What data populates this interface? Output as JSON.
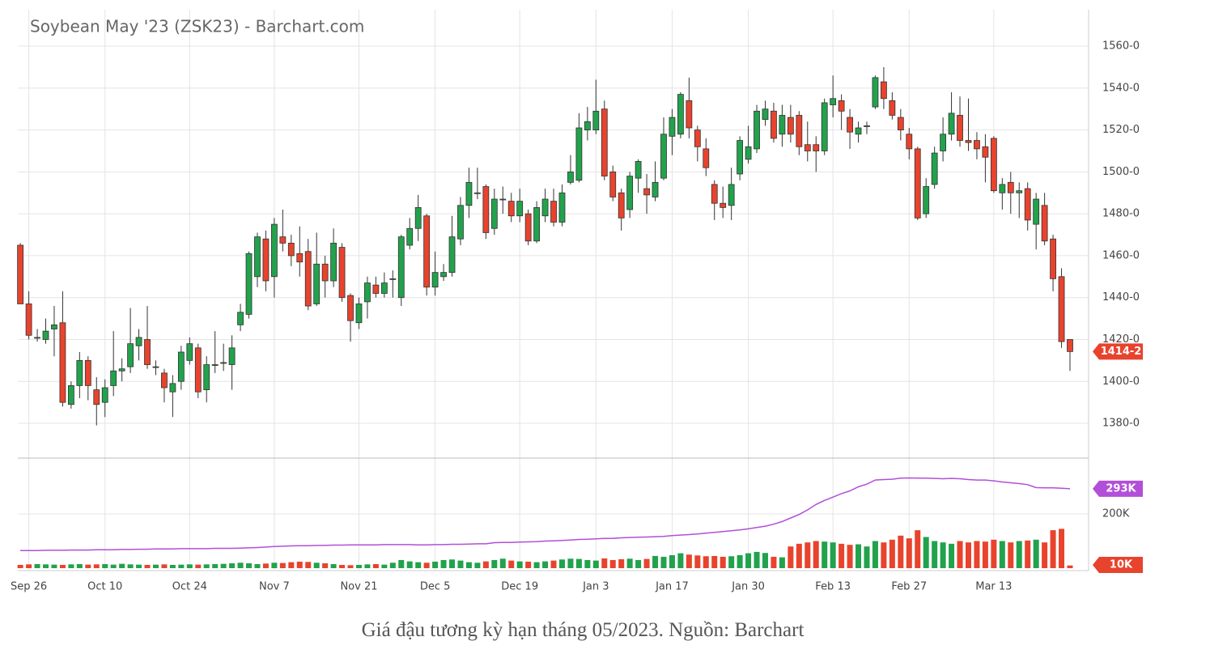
{
  "chart_data": {
    "type": "candlestick",
    "title": "Soybean May '23 (ZSK23) - Barchart.com",
    "up_color": "#22a24c",
    "down_color": "#e8432d",
    "grid": true,
    "xlim": [
      -0.3,
      126.2
    ],
    "xticks": [
      {
        "value": 1,
        "label": "Sep 26"
      },
      {
        "value": 10,
        "label": "Oct 10"
      },
      {
        "value": 20,
        "label": "Oct 24"
      },
      {
        "value": 30,
        "label": "Nov 7"
      },
      {
        "value": 40,
        "label": "Nov 21"
      },
      {
        "value": 49,
        "label": "Dec 5"
      },
      {
        "value": 59,
        "label": "Dec 19"
      },
      {
        "value": 68,
        "label": "Jan 3"
      },
      {
        "value": 77,
        "label": "Jan 17"
      },
      {
        "value": 86,
        "label": "Jan 30"
      },
      {
        "value": 96,
        "label": "Feb 13"
      },
      {
        "value": 105,
        "label": "Feb 27"
      },
      {
        "value": 115,
        "label": "Mar 13"
      }
    ],
    "ylim": [
      1363.4,
      1577.4
    ],
    "yticks": [
      {
        "value": 1380,
        "label": "1380-0"
      },
      {
        "value": 1400,
        "label": "1400-0"
      },
      {
        "value": 1420,
        "label": "1420-0"
      },
      {
        "value": 1440,
        "label": "1440-0"
      },
      {
        "value": 1460,
        "label": "1460-0"
      },
      {
        "value": 1480,
        "label": "1480-0"
      },
      {
        "value": 1500,
        "label": "1500-0"
      },
      {
        "value": 1520,
        "label": "1520-0"
      },
      {
        "value": 1540,
        "label": "1540-0"
      },
      {
        "value": 1560,
        "label": "1560-0"
      }
    ],
    "last_price": {
      "value": 1414.25,
      "label": "1414-2"
    },
    "ohlc": [
      [
        1465,
        1466,
        1437,
        1437
      ],
      [
        1437,
        1443,
        1420,
        1422
      ],
      [
        1421,
        1425,
        1419,
        1421
      ],
      [
        1420,
        1430,
        1418,
        1424
      ],
      [
        1425,
        1436,
        1412,
        1427
      ],
      [
        1428,
        1443,
        1388,
        1390
      ],
      [
        1389,
        1400,
        1387,
        1398
      ],
      [
        1398,
        1414,
        1392,
        1410
      ],
      [
        1410,
        1412,
        1391,
        1398
      ],
      [
        1396,
        1402,
        1379,
        1389
      ],
      [
        1390,
        1401,
        1383,
        1397
      ],
      [
        1398,
        1424,
        1393,
        1405
      ],
      [
        1405,
        1411,
        1400,
        1406
      ],
      [
        1407,
        1435,
        1404,
        1418
      ],
      [
        1417,
        1425,
        1410,
        1421
      ],
      [
        1420,
        1436,
        1406,
        1408
      ],
      [
        1407,
        1410,
        1403,
        1407
      ],
      [
        1404,
        1406,
        1390,
        1397
      ],
      [
        1395,
        1403,
        1383,
        1399
      ],
      [
        1400,
        1417,
        1396,
        1414
      ],
      [
        1410,
        1421,
        1408,
        1418
      ],
      [
        1416,
        1418,
        1392,
        1395
      ],
      [
        1396,
        1412,
        1390,
        1408
      ],
      [
        1408,
        1424,
        1404,
        1408
      ],
      [
        1409,
        1418,
        1405,
        1409
      ],
      [
        1408,
        1422,
        1396,
        1416
      ],
      [
        1427,
        1437,
        1424,
        1433
      ],
      [
        1432,
        1462,
        1430,
        1461
      ],
      [
        1450,
        1471,
        1445,
        1469
      ],
      [
        1468,
        1472,
        1443,
        1448
      ],
      [
        1450,
        1478,
        1440,
        1475
      ],
      [
        1469,
        1482,
        1462,
        1466
      ],
      [
        1466,
        1470,
        1455,
        1460
      ],
      [
        1461,
        1474,
        1450,
        1457
      ],
      [
        1462,
        1468,
        1434,
        1436
      ],
      [
        1437,
        1471,
        1436,
        1456
      ],
      [
        1456,
        1460,
        1440,
        1448
      ],
      [
        1448,
        1473,
        1445,
        1466
      ],
      [
        1464,
        1466,
        1438,
        1440
      ],
      [
        1441,
        1442,
        1419,
        1429
      ],
      [
        1428,
        1440,
        1425,
        1437
      ],
      [
        1438,
        1450,
        1430,
        1447
      ],
      [
        1446,
        1450,
        1440,
        1442
      ],
      [
        1442,
        1452,
        1440,
        1447
      ],
      [
        1449,
        1453,
        1440,
        1449
      ],
      [
        1440,
        1470,
        1436,
        1469
      ],
      [
        1465,
        1478,
        1463,
        1473
      ],
      [
        1473,
        1489,
        1467,
        1483
      ],
      [
        1479,
        1480,
        1441,
        1445
      ],
      [
        1445,
        1462,
        1441,
        1452
      ],
      [
        1450,
        1456,
        1448,
        1452
      ],
      [
        1452,
        1479,
        1450,
        1469
      ],
      [
        1468,
        1488,
        1465,
        1484
      ],
      [
        1484,
        1502,
        1478,
        1495
      ],
      [
        1490,
        1502,
        1487,
        1490
      ],
      [
        1493,
        1494,
        1468,
        1471
      ],
      [
        1473,
        1492,
        1470,
        1487
      ],
      [
        1487,
        1493,
        1480,
        1487
      ],
      [
        1486,
        1490,
        1476,
        1479
      ],
      [
        1479,
        1492,
        1476,
        1486
      ],
      [
        1480,
        1482,
        1465,
        1467
      ],
      [
        1467,
        1486,
        1466,
        1483
      ],
      [
        1479,
        1492,
        1476,
        1487
      ],
      [
        1486,
        1492,
        1474,
        1476
      ],
      [
        1476,
        1494,
        1474,
        1490
      ],
      [
        1495,
        1508,
        1494,
        1500
      ],
      [
        1496,
        1528,
        1495,
        1521
      ],
      [
        1520,
        1531,
        1515,
        1524
      ],
      [
        1520,
        1544,
        1518,
        1529
      ],
      [
        1530,
        1534,
        1496,
        1498
      ],
      [
        1500,
        1503,
        1486,
        1488
      ],
      [
        1490,
        1492,
        1472,
        1478
      ],
      [
        1482,
        1500,
        1478,
        1498
      ],
      [
        1497,
        1506,
        1490,
        1505
      ],
      [
        1492,
        1499,
        1480,
        1489
      ],
      [
        1488,
        1505,
        1486,
        1495
      ],
      [
        1497,
        1526,
        1496,
        1518
      ],
      [
        1517,
        1530,
        1508,
        1526
      ],
      [
        1518,
        1538,
        1516,
        1537
      ],
      [
        1534,
        1545,
        1516,
        1521
      ],
      [
        1520,
        1522,
        1505,
        1512
      ],
      [
        1511,
        1516,
        1498,
        1502
      ],
      [
        1494,
        1496,
        1477,
        1485
      ],
      [
        1485,
        1493,
        1478,
        1483
      ],
      [
        1484,
        1502,
        1477,
        1494
      ],
      [
        1499,
        1517,
        1496,
        1515
      ],
      [
        1506,
        1522,
        1504,
        1512
      ],
      [
        1511,
        1532,
        1509,
        1529
      ],
      [
        1525,
        1534,
        1522,
        1530
      ],
      [
        1529,
        1533,
        1514,
        1516
      ],
      [
        1518,
        1532,
        1512,
        1527
      ],
      [
        1526,
        1532,
        1514,
        1518
      ],
      [
        1527,
        1529,
        1508,
        1512
      ],
      [
        1513,
        1524,
        1505,
        1510
      ],
      [
        1513,
        1517,
        1500,
        1510
      ],
      [
        1510,
        1535,
        1508,
        1533
      ],
      [
        1532,
        1546,
        1526,
        1535
      ],
      [
        1534,
        1537,
        1520,
        1529
      ],
      [
        1526,
        1530,
        1511,
        1519
      ],
      [
        1518,
        1524,
        1514,
        1521
      ],
      [
        1522,
        1524,
        1518,
        1522
      ],
      [
        1531,
        1546,
        1530,
        1545
      ],
      [
        1543,
        1550,
        1530,
        1535
      ],
      [
        1534,
        1538,
        1525,
        1527
      ],
      [
        1526,
        1530,
        1515,
        1520
      ],
      [
        1518,
        1521,
        1506,
        1511
      ],
      [
        1511,
        1512,
        1477,
        1478
      ],
      [
        1480,
        1497,
        1478,
        1493
      ],
      [
        1494,
        1512,
        1492,
        1509
      ],
      [
        1510,
        1526,
        1505,
        1518
      ],
      [
        1518,
        1538,
        1515,
        1528
      ],
      [
        1527,
        1536,
        1512,
        1515
      ],
      [
        1515,
        1535,
        1510,
        1514
      ],
      [
        1515,
        1519,
        1506,
        1511
      ],
      [
        1512,
        1518,
        1495,
        1507
      ],
      [
        1516,
        1517,
        1490,
        1491
      ],
      [
        1490,
        1497,
        1482,
        1494
      ],
      [
        1495,
        1500,
        1480,
        1490
      ],
      [
        1490,
        1495,
        1478,
        1491
      ],
      [
        1492,
        1495,
        1472,
        1477
      ],
      [
        1475,
        1490,
        1463,
        1487
      ],
      [
        1484,
        1490,
        1465,
        1467
      ],
      [
        1468,
        1470,
        1443,
        1449
      ],
      [
        1450,
        1454,
        1416,
        1419
      ],
      [
        1420,
        1420,
        1405,
        1414.25
      ]
    ],
    "vlim": [
      0,
      406
    ],
    "vticks": [
      {
        "value": 200,
        "label": "200K"
      }
    ],
    "volume": {
      "last_label": "10K",
      "values": [
        12,
        14,
        15,
        14,
        13,
        12,
        14,
        15,
        13,
        14,
        15,
        13,
        16,
        14,
        13,
        12,
        13,
        14,
        12,
        13,
        14,
        13,
        14,
        15,
        16,
        18,
        20,
        18,
        15,
        17,
        20,
        19,
        22,
        24,
        23,
        20,
        18,
        15,
        12,
        11,
        12,
        14,
        15,
        13,
        20,
        30,
        25,
        22,
        20,
        24,
        30,
        32,
        28,
        22,
        20,
        25,
        30,
        35,
        28,
        25,
        24,
        22,
        25,
        28,
        32,
        35,
        34,
        30,
        28,
        36,
        30,
        33,
        35,
        30,
        34,
        45,
        42,
        48,
        55,
        50,
        47,
        44,
        45,
        42,
        44,
        48,
        55,
        60,
        56,
        42,
        40,
        80,
        90,
        95,
        100,
        98,
        95,
        90,
        86,
        88,
        80,
        100,
        95,
        105,
        120,
        110,
        140,
        115,
        100,
        95,
        90,
        100,
        95,
        100,
        98,
        105,
        100,
        95,
        100,
        102,
        105,
        95,
        140,
        145,
        10
      ]
    },
    "open_interest": {
      "color": "#b24fd8",
      "last_label": "293K",
      "values": [
        65,
        65,
        65,
        66,
        66,
        66,
        67,
        67,
        67,
        68,
        68,
        68,
        69,
        69,
        70,
        70,
        71,
        71,
        71,
        72,
        72,
        72,
        72,
        73,
        73,
        73,
        74,
        75,
        76,
        78,
        80,
        81,
        82,
        83,
        83,
        84,
        84,
        85,
        85,
        86,
        86,
        86,
        86,
        87,
        87,
        87,
        87,
        86,
        86,
        87,
        87,
        88,
        88,
        89,
        90,
        90,
        94,
        95,
        95,
        96,
        97,
        98,
        100,
        101,
        102,
        104,
        106,
        107,
        108,
        110,
        110,
        112,
        113,
        114,
        115,
        116,
        117,
        120,
        122,
        124,
        126,
        129,
        132,
        135,
        138,
        141,
        145,
        150,
        155,
        162,
        172,
        185,
        198,
        215,
        235,
        250,
        262,
        275,
        285,
        300,
        310,
        325,
        327,
        328,
        332,
        333,
        332,
        332,
        331,
        330,
        331,
        330,
        327,
        325,
        325,
        322,
        318,
        315,
        312,
        308,
        297,
        296,
        296,
        295,
        293
      ]
    }
  },
  "caption": "Giá đậu tương kỳ hạn tháng 05/2023. Nguồn: Barchart"
}
